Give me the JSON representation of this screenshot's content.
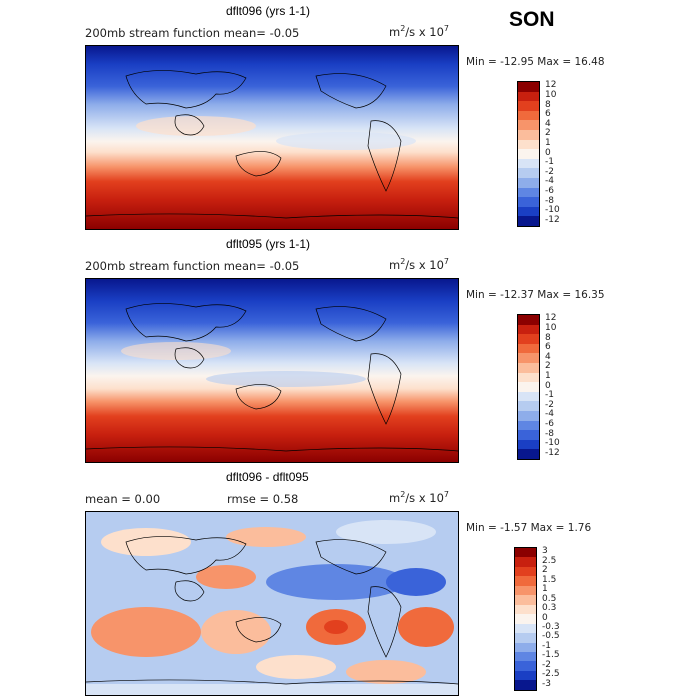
{
  "season": "SON",
  "panels": [
    {
      "title": "dflt096 (yrs 1-1)",
      "subtitle": "200mb stream function  mean=  -0.05",
      "units_base": "m",
      "units_rest": "/s x 10",
      "units_sup1": "2",
      "units_sup2": "7",
      "minmax": "Min = -12.95 Max =  16.48",
      "levels": [
        "12",
        "10",
        "8",
        "6",
        "4",
        "2",
        "1",
        "0",
        "-1",
        "-2",
        "-4",
        "-6",
        "-8",
        "-10",
        "-12"
      ],
      "colors": [
        "#8b0000",
        "#c8200f",
        "#e2401e",
        "#f06a3c",
        "#f7946a",
        "#fbbd9c",
        "#fde0cc",
        "#fbf4ee",
        "#d8e4f6",
        "#b6ccf0",
        "#8eadea",
        "#5f86e3",
        "#3a63d9",
        "#1a3fc4",
        "#08178e"
      ]
    },
    {
      "title": "dflt095 (yrs 1-1)",
      "subtitle": "200mb stream function  mean=  -0.05",
      "units_base": "m",
      "units_rest": "/s x 10",
      "units_sup1": "2",
      "units_sup2": "7",
      "minmax": "Min = -12.37 Max =  16.35",
      "levels": [
        "12",
        "10",
        "8",
        "6",
        "4",
        "2",
        "1",
        "0",
        "-1",
        "-2",
        "-4",
        "-6",
        "-8",
        "-10",
        "-12"
      ],
      "colors": [
        "#8b0000",
        "#c8200f",
        "#e2401e",
        "#f06a3c",
        "#f7946a",
        "#fbbd9c",
        "#fde0cc",
        "#fbf4ee",
        "#d8e4f6",
        "#b6ccf0",
        "#8eadea",
        "#5f86e3",
        "#3a63d9",
        "#1a3fc4",
        "#08178e"
      ]
    },
    {
      "title": "dflt096 - dflt095",
      "subtitle_mean": "mean =    0.00",
      "subtitle_rmse": "rmse =    0.58",
      "units_base": "m",
      "units_rest": "/s x 10",
      "units_sup1": "2",
      "units_sup2": "7",
      "minmax": "Min =  -1.57 Max =   1.76",
      "levels": [
        "3",
        "2.5",
        "2",
        "1.5",
        "1",
        "0.5",
        "0.3",
        "0",
        "-0.3",
        "-0.5",
        "-1",
        "-1.5",
        "-2",
        "-2.5",
        "-3"
      ],
      "colors": [
        "#8b0000",
        "#c8200f",
        "#e2401e",
        "#f06a3c",
        "#f7946a",
        "#fbbd9c",
        "#fde0cc",
        "#fbf4ee",
        "#d8e4f6",
        "#b6ccf0",
        "#8eadea",
        "#5f86e3",
        "#3a63d9",
        "#1a3fc4",
        "#08178e"
      ]
    }
  ]
}
